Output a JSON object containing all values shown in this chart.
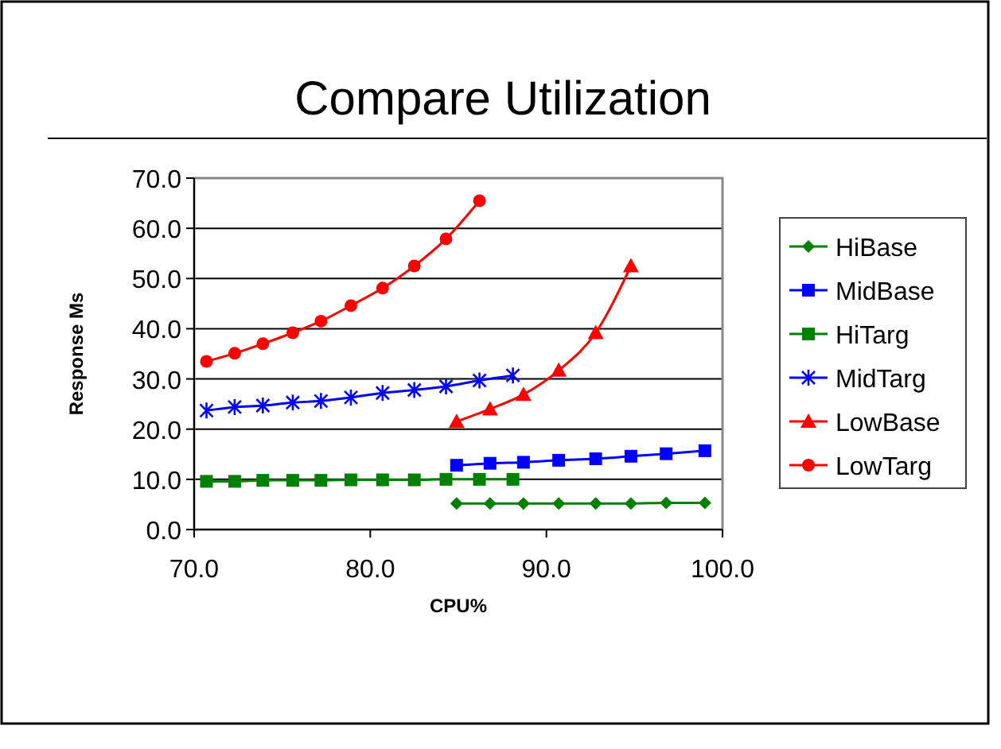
{
  "chart_data": {
    "type": "line",
    "title": "Compare Utilization",
    "xlabel": "CPU%",
    "ylabel": "Response Ms",
    "xlim": [
      70,
      100
    ],
    "xticks": [
      {
        "value": 70,
        "label": "70.0"
      },
      {
        "value": 80,
        "label": "80.0"
      },
      {
        "value": 90,
        "label": "90.0"
      },
      {
        "value": 100,
        "label": "100.0"
      }
    ],
    "ylim": [
      0,
      70
    ],
    "yticks": [
      {
        "value": 0,
        "label": "0.0"
      },
      {
        "value": 10,
        "label": "10.0"
      },
      {
        "value": 20,
        "label": "20.0"
      },
      {
        "value": 30,
        "label": "30.0"
      },
      {
        "value": 40,
        "label": "40.0"
      },
      {
        "value": 50,
        "label": "50.0"
      },
      {
        "value": 60,
        "label": "60.0"
      },
      {
        "value": 70,
        "label": "70.0"
      }
    ],
    "grid": "y",
    "legend": "right",
    "series": [
      {
        "name": "HiBase",
        "color": "#008000",
        "marker": "diamond",
        "x": [
          84.9,
          86.8,
          88.7,
          90.7,
          92.8,
          94.8,
          96.8,
          99.0
        ],
        "values": [
          5.2,
          5.2,
          5.2,
          5.2,
          5.2,
          5.2,
          5.3,
          5.3
        ]
      },
      {
        "name": "MidBase",
        "color": "#0000ff",
        "marker": "square",
        "x": [
          84.9,
          86.8,
          88.7,
          90.7,
          92.8,
          94.8,
          96.8,
          99.0
        ],
        "values": [
          12.8,
          13.2,
          13.4,
          13.8,
          14.1,
          14.6,
          15.1,
          15.7
        ]
      },
      {
        "name": "HiTarg",
        "color": "#008000",
        "marker": "square",
        "x": [
          70.7,
          72.3,
          73.9,
          75.6,
          77.2,
          78.9,
          80.7,
          82.5,
          84.3,
          86.2,
          88.1
        ],
        "values": [
          9.6,
          9.6,
          9.8,
          9.8,
          9.8,
          9.9,
          9.9,
          9.9,
          10.0,
          10.0,
          10.0
        ]
      },
      {
        "name": "MidTarg",
        "color": "#0000ff",
        "marker": "cross",
        "x": [
          70.7,
          72.3,
          73.9,
          75.6,
          77.2,
          78.9,
          80.7,
          82.5,
          84.3,
          86.2,
          88.1
        ],
        "values": [
          23.7,
          24.4,
          24.7,
          25.3,
          25.6,
          26.3,
          27.2,
          27.8,
          28.5,
          29.7,
          30.7
        ]
      },
      {
        "name": "LowBase",
        "color": "#ff0000",
        "marker": "triangle",
        "x": [
          84.9,
          86.8,
          88.7,
          90.7,
          92.8,
          94.8
        ],
        "values": [
          21.5,
          24.0,
          26.9,
          31.7,
          39.2,
          52.5
        ]
      },
      {
        "name": "LowTarg",
        "color": "#ff0000",
        "marker": "circle",
        "x": [
          70.7,
          72.3,
          73.9,
          75.6,
          77.2,
          78.9,
          80.7,
          82.5,
          84.3,
          86.2
        ],
        "values": [
          33.5,
          35.1,
          37.0,
          39.2,
          41.5,
          44.6,
          48.1,
          52.5,
          57.9,
          65.5
        ]
      }
    ]
  }
}
